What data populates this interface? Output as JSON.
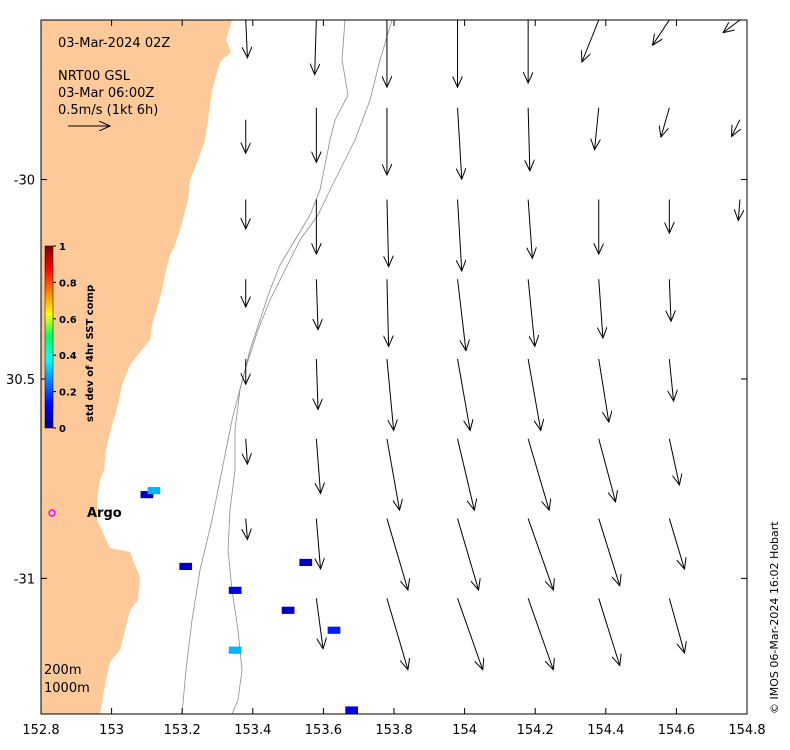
{
  "map": {
    "lon_range": [
      152.8,
      154.8
    ],
    "lat_range": [
      -31.34,
      -29.6
    ],
    "x_ticks": [
      {
        "value": 152.8,
        "label": "152.8"
      },
      {
        "value": 153.0,
        "label": "153"
      },
      {
        "value": 153.2,
        "label": "153.2"
      },
      {
        "value": 153.4,
        "label": "153.4"
      },
      {
        "value": 153.6,
        "label": "153.6"
      },
      {
        "value": 153.8,
        "label": "153.8"
      },
      {
        "value": 154.0,
        "label": "154"
      },
      {
        "value": 154.2,
        "label": "154.2"
      },
      {
        "value": 154.4,
        "label": "154.4"
      },
      {
        "value": 154.6,
        "label": "154.6"
      },
      {
        "value": 154.8,
        "label": "154.8"
      }
    ],
    "y_ticks": [
      {
        "value": -30.0,
        "label": "-30"
      },
      {
        "value": -30.5,
        "label": "30.5"
      },
      {
        "value": -31.0,
        "label": "-31"
      }
    ],
    "land_color": "#fdc998",
    "info": {
      "date_time": "03-Mar-2024 02Z",
      "source": "NRT00 GSL",
      "vector_time": "03-Mar 06:00Z",
      "scale": "0.5m/s (1kt 6h)",
      "scale_vector_u": 0.5
    },
    "argo": {
      "label": "Argo",
      "lon": 152.83,
      "lat": -30.8,
      "color": "#ff00ff"
    },
    "contours": {
      "c200": "200m",
      "c1000": "1000m"
    },
    "colorbar": {
      "title": "std dev of 4hr SST comp",
      "ticks": [
        "0",
        "0.2",
        "0.4",
        "0.6",
        "0.8",
        "1"
      ],
      "colormap": "jet"
    },
    "credit": "© IMOS 06-Mar-2024 16:02 Hobart"
  },
  "chart_data": {
    "type": "vector-field",
    "title": "03-Mar-2024 02Z",
    "xlabel": "",
    "ylabel": "",
    "xlim": [
      152.8,
      154.8
    ],
    "ylim": [
      -31.34,
      -29.6
    ],
    "vector_units": "m/s",
    "vectors": [
      {
        "lon": 153.38,
        "lat": -29.6,
        "u": 0.02,
        "v": -0.45
      },
      {
        "lon": 153.38,
        "lat": -29.85,
        "u": 0.0,
        "v": -0.4
      },
      {
        "lon": 153.38,
        "lat": -30.05,
        "u": 0.0,
        "v": -0.35
      },
      {
        "lon": 153.38,
        "lat": -30.25,
        "u": 0.0,
        "v": -0.33
      },
      {
        "lon": 153.38,
        "lat": -30.45,
        "u": 0.0,
        "v": -0.3
      },
      {
        "lon": 153.38,
        "lat": -30.65,
        "u": 0.02,
        "v": -0.3
      },
      {
        "lon": 153.38,
        "lat": -30.85,
        "u": 0.02,
        "v": -0.25
      },
      {
        "lon": 153.58,
        "lat": -29.6,
        "u": -0.02,
        "v": -0.65
      },
      {
        "lon": 153.58,
        "lat": -29.82,
        "u": 0.0,
        "v": -0.65
      },
      {
        "lon": 153.58,
        "lat": -30.05,
        "u": 0.0,
        "v": -0.65
      },
      {
        "lon": 153.58,
        "lat": -30.25,
        "u": 0.02,
        "v": -0.6
      },
      {
        "lon": 153.58,
        "lat": -30.45,
        "u": 0.02,
        "v": -0.6
      },
      {
        "lon": 153.58,
        "lat": -30.65,
        "u": 0.05,
        "v": -0.65
      },
      {
        "lon": 153.58,
        "lat": -30.85,
        "u": 0.05,
        "v": -0.6
      },
      {
        "lon": 153.58,
        "lat": -31.05,
        "u": 0.08,
        "v": -0.6
      },
      {
        "lon": 153.78,
        "lat": -29.6,
        "u": 0.0,
        "v": -0.8
      },
      {
        "lon": 153.78,
        "lat": -29.82,
        "u": 0.0,
        "v": -0.8
      },
      {
        "lon": 153.78,
        "lat": -30.05,
        "u": 0.02,
        "v": -0.8
      },
      {
        "lon": 153.78,
        "lat": -30.25,
        "u": 0.02,
        "v": -0.8
      },
      {
        "lon": 153.78,
        "lat": -30.45,
        "u": 0.08,
        "v": -0.85
      },
      {
        "lon": 153.78,
        "lat": -30.65,
        "u": 0.15,
        "v": -0.85
      },
      {
        "lon": 153.78,
        "lat": -30.85,
        "u": 0.25,
        "v": -0.85
      },
      {
        "lon": 153.78,
        "lat": -31.05,
        "u": 0.25,
        "v": -0.85
      },
      {
        "lon": 153.98,
        "lat": -29.6,
        "u": 0.0,
        "v": -0.8
      },
      {
        "lon": 153.98,
        "lat": -29.82,
        "u": 0.05,
        "v": -0.85
      },
      {
        "lon": 153.98,
        "lat": -30.05,
        "u": 0.05,
        "v": -0.85
      },
      {
        "lon": 153.98,
        "lat": -30.25,
        "u": 0.1,
        "v": -0.85
      },
      {
        "lon": 153.98,
        "lat": -30.45,
        "u": 0.15,
        "v": -0.85
      },
      {
        "lon": 153.98,
        "lat": -30.65,
        "u": 0.2,
        "v": -0.85
      },
      {
        "lon": 153.98,
        "lat": -30.85,
        "u": 0.25,
        "v": -0.85
      },
      {
        "lon": 153.98,
        "lat": -31.05,
        "u": 0.3,
        "v": -0.85
      },
      {
        "lon": 154.18,
        "lat": -29.6,
        "u": 0.0,
        "v": -0.75
      },
      {
        "lon": 154.18,
        "lat": -29.82,
        "u": 0.02,
        "v": -0.75
      },
      {
        "lon": 154.18,
        "lat": -30.05,
        "u": 0.05,
        "v": -0.7
      },
      {
        "lon": 154.18,
        "lat": -30.25,
        "u": 0.08,
        "v": -0.8
      },
      {
        "lon": 154.18,
        "lat": -30.45,
        "u": 0.15,
        "v": -0.85
      },
      {
        "lon": 154.18,
        "lat": -30.65,
        "u": 0.25,
        "v": -0.85
      },
      {
        "lon": 154.18,
        "lat": -30.85,
        "u": 0.3,
        "v": -0.85
      },
      {
        "lon": 154.18,
        "lat": -31.05,
        "u": 0.3,
        "v": -0.85
      },
      {
        "lon": 154.38,
        "lat": -29.6,
        "u": -0.2,
        "v": -0.5
      },
      {
        "lon": 154.38,
        "lat": -29.82,
        "u": -0.05,
        "v": -0.5
      },
      {
        "lon": 154.38,
        "lat": -30.05,
        "u": 0.0,
        "v": -0.65
      },
      {
        "lon": 154.38,
        "lat": -30.25,
        "u": 0.05,
        "v": -0.7
      },
      {
        "lon": 154.38,
        "lat": -30.45,
        "u": 0.12,
        "v": -0.75
      },
      {
        "lon": 154.38,
        "lat": -30.65,
        "u": 0.2,
        "v": -0.75
      },
      {
        "lon": 154.38,
        "lat": -30.85,
        "u": 0.25,
        "v": -0.8
      },
      {
        "lon": 154.38,
        "lat": -31.05,
        "u": 0.25,
        "v": -0.8
      },
      {
        "lon": 154.58,
        "lat": -29.6,
        "u": -0.2,
        "v": -0.3
      },
      {
        "lon": 154.58,
        "lat": -29.82,
        "u": -0.1,
        "v": -0.35
      },
      {
        "lon": 154.58,
        "lat": -30.05,
        "u": 0.0,
        "v": -0.4
      },
      {
        "lon": 154.58,
        "lat": -30.25,
        "u": 0.02,
        "v": -0.5
      },
      {
        "lon": 154.58,
        "lat": -30.45,
        "u": 0.05,
        "v": -0.5
      },
      {
        "lon": 154.58,
        "lat": -30.65,
        "u": 0.12,
        "v": -0.55
      },
      {
        "lon": 154.58,
        "lat": -30.85,
        "u": 0.18,
        "v": -0.6
      },
      {
        "lon": 154.58,
        "lat": -31.05,
        "u": 0.18,
        "v": -0.65
      },
      {
        "lon": 154.78,
        "lat": -29.6,
        "u": -0.2,
        "v": -0.15
      },
      {
        "lon": 154.78,
        "lat": -29.85,
        "u": -0.1,
        "v": -0.2
      },
      {
        "lon": 154.78,
        "lat": -30.05,
        "u": -0.02,
        "v": -0.25
      }
    ],
    "sst_std_dev_patches": [
      {
        "lon": 153.1,
        "lat": -30.79,
        "value": 0.05
      },
      {
        "lon": 153.12,
        "lat": -30.78,
        "value": 0.3
      },
      {
        "lon": 153.21,
        "lat": -30.97,
        "value": 0.05
      },
      {
        "lon": 153.35,
        "lat": -31.03,
        "value": 0.1
      },
      {
        "lon": 153.55,
        "lat": -30.96,
        "value": 0.05
      },
      {
        "lon": 153.5,
        "lat": -31.08,
        "value": 0.05
      },
      {
        "lon": 153.63,
        "lat": -31.13,
        "value": 0.15
      },
      {
        "lon": 153.35,
        "lat": -31.18,
        "value": 0.3
      },
      {
        "lon": 153.68,
        "lat": -31.33,
        "value": 0.1
      }
    ]
  }
}
